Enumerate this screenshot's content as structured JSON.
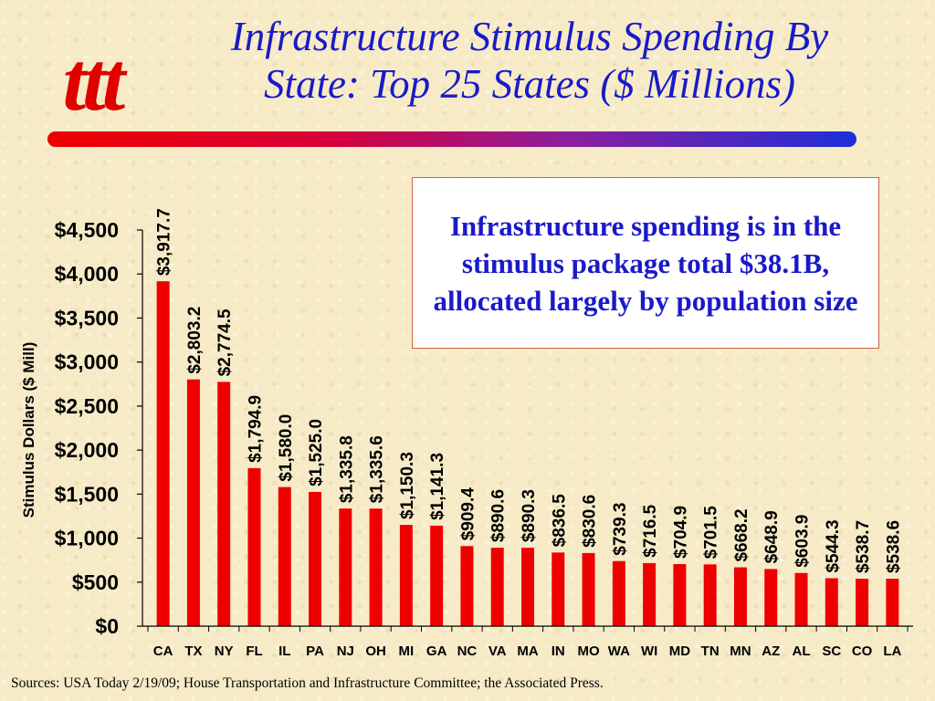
{
  "slide": {
    "title_line1": "Infrastructure Stimulus Spending By",
    "title_line2": "State: Top 25 States ($ Millions)",
    "callout": "Infrastructure spending is in the stimulus package total $38.1B, allocated largely by population size",
    "sources": "Sources: USA Today 2/19/09; House Transportation and Infrastructure Committee; the Associated Press.",
    "logo_text": "ttt"
  },
  "colors": {
    "title": "#1a1ac8",
    "bar": "#ee0000",
    "logo": "#e00000"
  },
  "chart_data": {
    "type": "bar",
    "ylabel": "Stimulus Dollars ($ Mill)",
    "xlabel": "",
    "ylim": [
      0,
      4500
    ],
    "yticks": [
      0,
      500,
      1000,
      1500,
      2000,
      2500,
      3000,
      3500,
      4000,
      4500
    ],
    "ytick_labels": [
      "$0",
      "$500",
      "$1,000",
      "$1,500",
      "$2,000",
      "$2,500",
      "$3,000",
      "$3,500",
      "$4,000",
      "$4,500"
    ],
    "grid": false,
    "categories": [
      "CA",
      "TX",
      "NY",
      "FL",
      "IL",
      "PA",
      "NJ",
      "OH",
      "MI",
      "GA",
      "NC",
      "VA",
      "MA",
      "IN",
      "MO",
      "WA",
      "WI",
      "MD",
      "TN",
      "MN",
      "AZ",
      "AL",
      "SC",
      "CO",
      "LA"
    ],
    "values": [
      3917.7,
      2803.2,
      2774.5,
      1794.9,
      1580.0,
      1525.0,
      1335.8,
      1335.6,
      1150.3,
      1141.3,
      909.4,
      890.6,
      890.3,
      836.5,
      830.6,
      739.3,
      716.5,
      704.9,
      701.5,
      668.2,
      648.9,
      603.9,
      544.3,
      538.7,
      538.6
    ],
    "data_labels": [
      "$3,917.7",
      "$2,803.2",
      "$2,774.5",
      "$1,794.9",
      "$1,580.0",
      "$1,525.0",
      "$1,335.8",
      "$1,335.6",
      "$1,150.3",
      "$1,141.3",
      "$909.4",
      "$890.6",
      "$890.3",
      "$836.5",
      "$830.6",
      "$739.3",
      "$716.5",
      "$704.9",
      "$701.5",
      "$668.2",
      "$648.9",
      "$603.9",
      "$544.3",
      "$538.7",
      "$538.6"
    ]
  }
}
